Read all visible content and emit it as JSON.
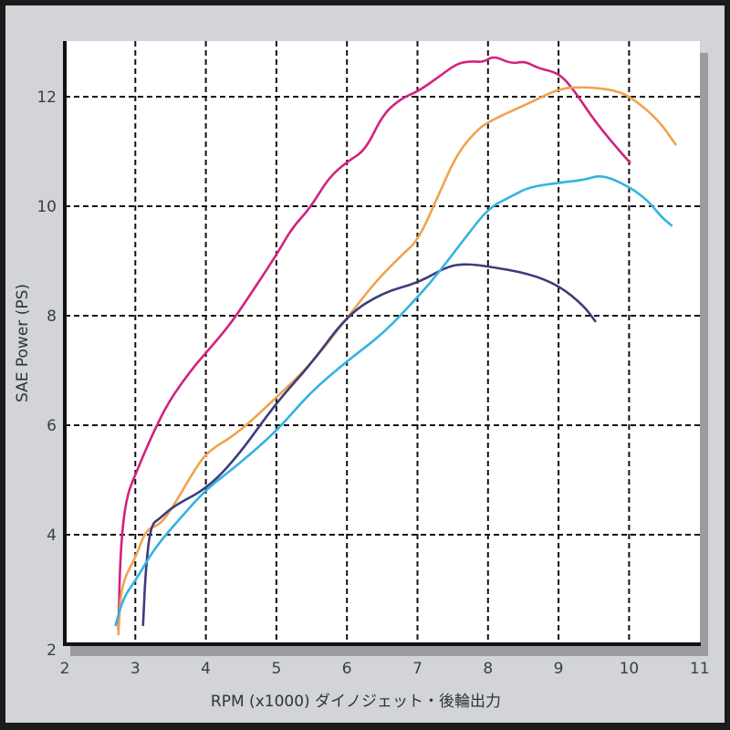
{
  "chart_data": {
    "type": "line",
    "title": "",
    "xlabel": "RPM (x1000) ダイノジェット・後輪出力",
    "ylabel": "SAE Power (PS)",
    "xlim": [
      2,
      11
    ],
    "ylim": [
      2,
      13
    ],
    "x_ticks": [
      2,
      3,
      4,
      5,
      6,
      7,
      8,
      9,
      10,
      11
    ],
    "y_ticks": [
      2,
      4,
      6,
      8,
      10,
      12
    ],
    "grid": true,
    "legend": null,
    "series": [
      {
        "name": "magenta",
        "color": "#d4217f",
        "points": [
          [
            2.76,
            2.27
          ],
          [
            2.79,
            3.77
          ],
          [
            2.87,
            4.68
          ],
          [
            3.01,
            5.13
          ],
          [
            3.22,
            5.77
          ],
          [
            3.47,
            6.43
          ],
          [
            3.8,
            7.02
          ],
          [
            4.02,
            7.35
          ],
          [
            4.32,
            7.8
          ],
          [
            4.57,
            8.27
          ],
          [
            5.01,
            9.13
          ],
          [
            5.22,
            9.6
          ],
          [
            5.48,
            9.97
          ],
          [
            5.74,
            10.52
          ],
          [
            6.01,
            10.82
          ],
          [
            6.26,
            11.02
          ],
          [
            6.51,
            11.68
          ],
          [
            6.77,
            11.97
          ],
          [
            7.01,
            12.1
          ],
          [
            7.29,
            12.35
          ],
          [
            7.55,
            12.6
          ],
          [
            7.74,
            12.65
          ],
          [
            7.94,
            12.63
          ],
          [
            8.08,
            12.75
          ],
          [
            8.33,
            12.6
          ],
          [
            8.52,
            12.65
          ],
          [
            8.71,
            12.52
          ],
          [
            9.01,
            12.43
          ],
          [
            9.23,
            12.1
          ],
          [
            9.49,
            11.6
          ],
          [
            9.75,
            11.18
          ],
          [
            10.01,
            10.8
          ]
        ]
      },
      {
        "name": "orange",
        "color": "#f0a34e",
        "points": [
          [
            2.76,
            2.18
          ],
          [
            2.8,
            3.1
          ],
          [
            3.01,
            3.6
          ],
          [
            3.15,
            4.1
          ],
          [
            3.35,
            4.18
          ],
          [
            3.54,
            4.52
          ],
          [
            3.8,
            5.1
          ],
          [
            4.02,
            5.52
          ],
          [
            4.45,
            5.85
          ],
          [
            5.01,
            6.52
          ],
          [
            5.48,
            7.1
          ],
          [
            6.01,
            7.97
          ],
          [
            6.39,
            8.6
          ],
          [
            6.77,
            9.1
          ],
          [
            7.01,
            9.38
          ],
          [
            7.29,
            10.18
          ],
          [
            7.55,
            10.93
          ],
          [
            7.81,
            11.35
          ],
          [
            8.01,
            11.55
          ],
          [
            8.58,
            11.88
          ],
          [
            9.01,
            12.15
          ],
          [
            9.36,
            12.18
          ],
          [
            9.75,
            12.13
          ],
          [
            10.0,
            12.02
          ],
          [
            10.4,
            11.6
          ],
          [
            10.66,
            11.13
          ]
        ]
      },
      {
        "name": "navy",
        "color": "#3b3d7c",
        "points": [
          [
            3.11,
            2.35
          ],
          [
            3.15,
            3.43
          ],
          [
            3.22,
            4.18
          ],
          [
            3.35,
            4.3
          ],
          [
            3.54,
            4.52
          ],
          [
            4.02,
            4.85
          ],
          [
            4.45,
            5.43
          ],
          [
            5.01,
            6.43
          ],
          [
            5.48,
            7.1
          ],
          [
            6.01,
            8.02
          ],
          [
            6.52,
            8.43
          ],
          [
            7.01,
            8.6
          ],
          [
            7.42,
            8.9
          ],
          [
            7.68,
            8.95
          ],
          [
            8.01,
            8.9
          ],
          [
            8.58,
            8.77
          ],
          [
            9.01,
            8.55
          ],
          [
            9.36,
            8.18
          ],
          [
            9.52,
            7.9
          ]
        ]
      },
      {
        "name": "cyan",
        "color": "#34b3e0",
        "points": [
          [
            2.72,
            2.35
          ],
          [
            2.83,
            2.85
          ],
          [
            3.01,
            3.18
          ],
          [
            3.28,
            3.77
          ],
          [
            3.67,
            4.35
          ],
          [
            4.02,
            4.85
          ],
          [
            4.45,
            5.27
          ],
          [
            5.01,
            5.9
          ],
          [
            5.48,
            6.6
          ],
          [
            6.01,
            7.18
          ],
          [
            6.52,
            7.68
          ],
          [
            7.01,
            8.35
          ],
          [
            7.29,
            8.77
          ],
          [
            7.68,
            9.43
          ],
          [
            8.01,
            9.97
          ],
          [
            8.33,
            10.18
          ],
          [
            8.58,
            10.35
          ],
          [
            9.01,
            10.43
          ],
          [
            9.36,
            10.48
          ],
          [
            9.62,
            10.58
          ],
          [
            10.01,
            10.35
          ],
          [
            10.27,
            10.1
          ],
          [
            10.46,
            9.8
          ],
          [
            10.6,
            9.65
          ]
        ]
      }
    ]
  },
  "axes": {
    "x_label": "RPM (x1000) ダイノジェット・後輪出力",
    "y_label": "SAE Power (PS)",
    "x_tick_labels": [
      "2",
      "3",
      "4",
      "5",
      "6",
      "7",
      "8",
      "9",
      "10",
      "11"
    ],
    "y_tick_labels": [
      "2",
      "4",
      "6",
      "8",
      "10",
      "12"
    ]
  },
  "colors": {
    "frame_border": "#1b1b1b",
    "frame_bg": "#d2d4d7",
    "plot_bg": "#ffffff",
    "shadow": "#9a9c9f",
    "grid": "#111111"
  }
}
